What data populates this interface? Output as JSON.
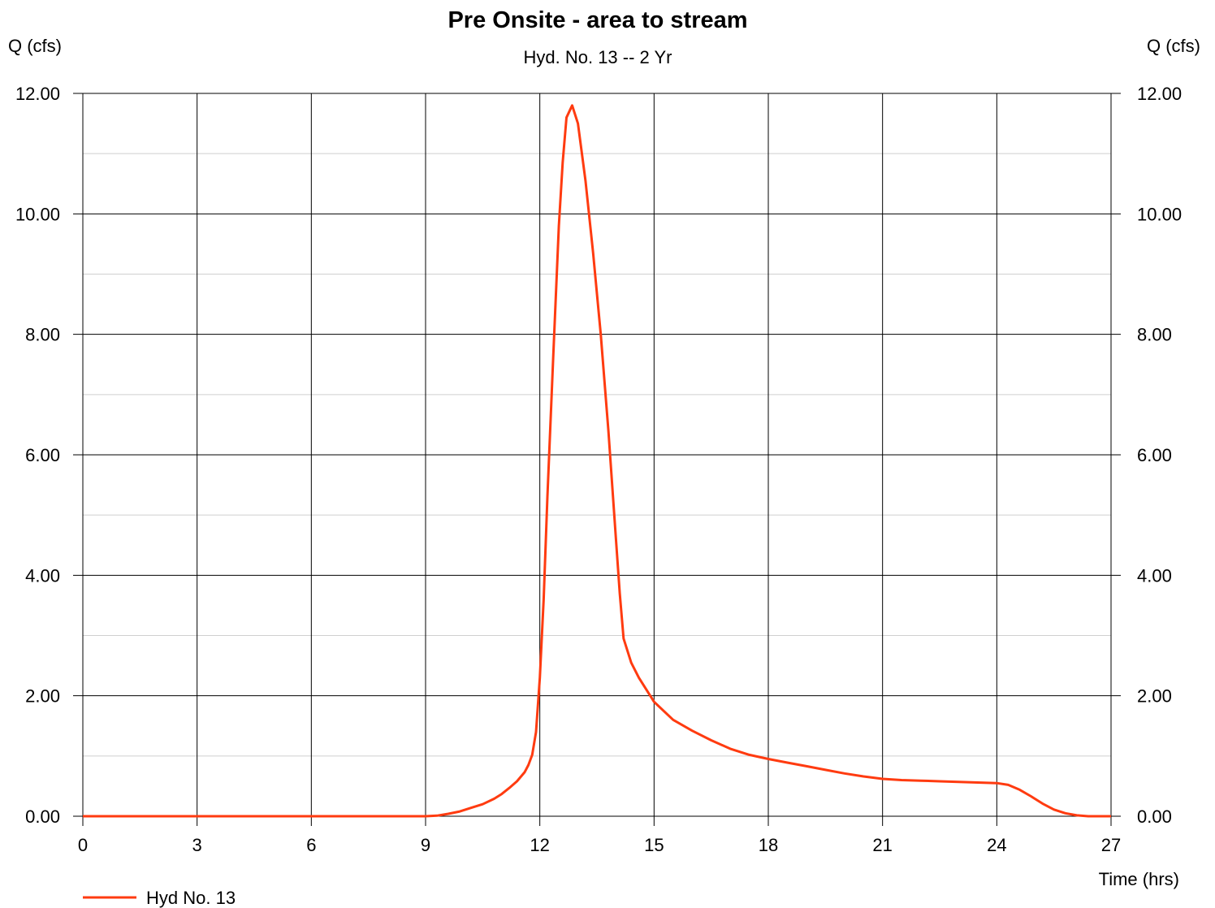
{
  "chart_data": {
    "type": "line",
    "title": "Pre Onsite - area to stream",
    "subtitle": "Hyd. No. 13 -- 2 Yr",
    "ylabel_left": "Q (cfs)",
    "ylabel_right": "Q (cfs)",
    "xlabel": "Time (hrs)",
    "xlim": [
      0,
      27
    ],
    "ylim": [
      0,
      12
    ],
    "x_ticks": [
      "0",
      "3",
      "6",
      "9",
      "12",
      "15",
      "18",
      "21",
      "24",
      "27"
    ],
    "y_ticks": [
      "0.00",
      "2.00",
      "4.00",
      "6.00",
      "8.00",
      "10.00",
      "12.00"
    ],
    "grid": true,
    "legend_position": "bottom-left",
    "series": [
      {
        "name": "Hyd No. 13",
        "color": "#ff3b10",
        "x": [
          0,
          3,
          6,
          9,
          9.3,
          9.6,
          9.9,
          10.2,
          10.5,
          10.8,
          11.0,
          11.2,
          11.4,
          11.6,
          11.7,
          11.8,
          11.9,
          12.0,
          12.1,
          12.2,
          12.35,
          12.5,
          12.6,
          12.7,
          12.85,
          13.0,
          13.2,
          13.4,
          13.6,
          13.8,
          14.0,
          14.1,
          14.2,
          14.4,
          14.6,
          15.0,
          15.5,
          16.0,
          16.5,
          17.0,
          17.5,
          18.0,
          18.5,
          19.0,
          19.5,
          20.0,
          20.5,
          21.0,
          21.5,
          22.0,
          22.5,
          23.0,
          23.5,
          24.0,
          24.3,
          24.6,
          24.9,
          25.2,
          25.5,
          25.8,
          26.1,
          26.4,
          26.7,
          27.0
        ],
        "y": [
          0,
          0,
          0,
          0,
          0.01,
          0.04,
          0.08,
          0.14,
          0.2,
          0.29,
          0.37,
          0.47,
          0.58,
          0.73,
          0.85,
          1.02,
          1.4,
          2.3,
          3.6,
          5.3,
          7.6,
          9.8,
          10.85,
          11.6,
          11.8,
          11.5,
          10.55,
          9.35,
          8.0,
          6.4,
          4.6,
          3.7,
          2.95,
          2.55,
          2.3,
          1.9,
          1.6,
          1.42,
          1.26,
          1.12,
          1.02,
          0.95,
          0.89,
          0.83,
          0.77,
          0.71,
          0.66,
          0.62,
          0.6,
          0.59,
          0.58,
          0.57,
          0.56,
          0.55,
          0.52,
          0.44,
          0.33,
          0.21,
          0.11,
          0.05,
          0.015,
          0.0,
          0.0,
          0.0
        ]
      }
    ]
  }
}
